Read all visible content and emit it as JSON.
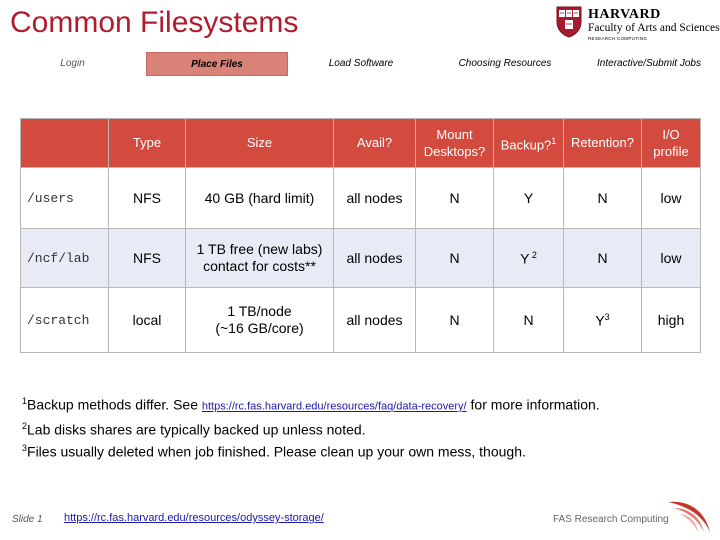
{
  "header": {
    "title": "Common Filesystems",
    "logo": {
      "name": "HARVARD",
      "sub": "Faculty of Arts and Sciences",
      "sub2": "RESEARCH COMPUTING",
      "shield_text": "VE RI TAS"
    }
  },
  "nav": {
    "items": [
      {
        "label": "Login",
        "state": "inactive"
      },
      {
        "label": "Place Files",
        "state": "active"
      },
      {
        "label": "Load Software",
        "state": "inactive"
      },
      {
        "label": "Choosing Resources",
        "state": "inactive"
      },
      {
        "label": "Interactive/Submit Jobs",
        "state": "inactive"
      }
    ]
  },
  "table": {
    "headers": {
      "path": "",
      "type": "Type",
      "size": "Size",
      "avail": "Avail?",
      "mount_line1": "Mount",
      "mount_line2": "Desktops?",
      "backup": "Backup?",
      "backup_sup": "1",
      "retention": "Retention?",
      "io_line1": "I/O",
      "io_line2": "profile"
    },
    "rows": [
      {
        "path": "/users",
        "type": "NFS",
        "size_line1": "40 GB (hard limit)",
        "size_line2": "",
        "avail": "all nodes",
        "mount": "N",
        "backup": "Y",
        "backup_sup": "",
        "retention": "N",
        "retention_sup": "",
        "io": "low"
      },
      {
        "path": "/ncf/lab",
        "type": "NFS",
        "size_line1": "1 TB free (new labs)",
        "size_line2": "contact for costs**",
        "avail": "all nodes",
        "mount": "N",
        "backup": "Y",
        "backup_sup": " 2",
        "retention": "N",
        "retention_sup": "",
        "io": "low"
      },
      {
        "path": "/scratch",
        "type": "local",
        "size_line1": "1 TB/node",
        "size_line2": "(~16 GB/core)",
        "avail": "all nodes",
        "mount": "N",
        "backup": "N",
        "backup_sup": "",
        "retention": "Y",
        "retention_sup": "3",
        "io": "high"
      }
    ]
  },
  "notes": [
    {
      "sup": "1",
      "text_before": "Backup methods differ. See ",
      "link": "https://rc.fas.harvard.edu/resources/faq/data-recovery/",
      "text_after": " for more information."
    },
    {
      "sup": "2",
      "text_before": "Lab disks shares are typically backed up unless noted.",
      "link": "",
      "text_after": ""
    },
    {
      "sup": "3",
      "text_before": "Files usually deleted when job finished. Please clean up your own mess, though.",
      "link": "",
      "text_after": ""
    }
  ],
  "footer": {
    "slide": "Slide  1",
    "link": "https://rc.fas.harvard.edu/resources/odyssey-storage/",
    "org": "FAS Research Computing"
  },
  "colors": {
    "title": "#b01c2e",
    "header_bg": "#d24b3e",
    "nav_active_bg": "#d98278",
    "alt_row_bg": "#e8ebf5",
    "link": "#1a1aa6"
  }
}
